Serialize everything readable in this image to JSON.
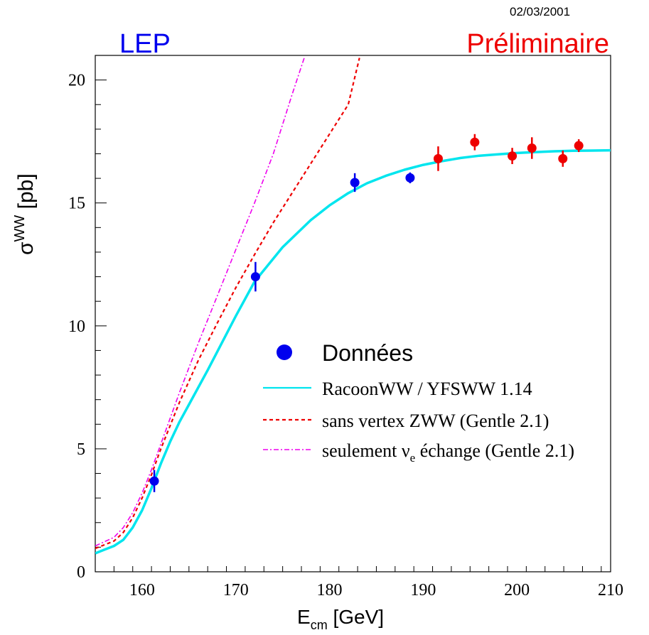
{
  "header": {
    "date": "02/03/2001",
    "left_title": "LEP",
    "right_title": "Préliminaire"
  },
  "colors": {
    "lep": "#0000ee",
    "preliminaire": "#ee0000",
    "data_blue": "#0000ee",
    "data_red": "#ee0000",
    "racoon": "#00e5ee",
    "zww": "#ee0000",
    "nue": "#ee00ee"
  },
  "chart_data": {
    "type": "line",
    "xlabel_main": "E",
    "xlabel_sub": "cm",
    "xlabel_unit": "[GeV]",
    "ylabel_main": "σ",
    "ylabel_sup": "WW",
    "ylabel_unit": "[pb]",
    "xlim": [
      155,
      210
    ],
    "ylim": [
      0,
      21
    ],
    "x_ticks": [
      160,
      170,
      180,
      190,
      200,
      210
    ],
    "y_ticks": [
      0,
      5,
      10,
      15,
      20
    ],
    "legend_position": "center-right",
    "points": [
      {
        "x": 161.3,
        "y": 3.69,
        "err": 0.45,
        "color": "blue"
      },
      {
        "x": 172.1,
        "y": 12.0,
        "err": 0.6,
        "color": "blue"
      },
      {
        "x": 182.7,
        "y": 15.83,
        "err": 0.38,
        "color": "blue"
      },
      {
        "x": 188.6,
        "y": 16.02,
        "err": 0.22,
        "color": "blue"
      },
      {
        "x": 191.6,
        "y": 16.8,
        "err": 0.5,
        "color": "red"
      },
      {
        "x": 195.5,
        "y": 17.47,
        "err": 0.33,
        "color": "red"
      },
      {
        "x": 199.5,
        "y": 16.91,
        "err": 0.33,
        "color": "red"
      },
      {
        "x": 201.6,
        "y": 17.23,
        "err": 0.44,
        "color": "red"
      },
      {
        "x": 204.9,
        "y": 16.8,
        "err": 0.33,
        "color": "red"
      },
      {
        "x": 206.6,
        "y": 17.33,
        "err": 0.26,
        "color": "red"
      }
    ],
    "series": [
      {
        "name": "RacoonWW / YFSWW 1.14",
        "style": "solid",
        "x": [
          155,
          156,
          157,
          158,
          159,
          160,
          161,
          162,
          163,
          164,
          165,
          167,
          170,
          172,
          175,
          178,
          180,
          182,
          184,
          186,
          188,
          190,
          192,
          194,
          196,
          198,
          200,
          202,
          204,
          206,
          208,
          210
        ],
        "y": [
          0.75,
          0.9,
          1.05,
          1.3,
          1.8,
          2.5,
          3.4,
          4.4,
          5.3,
          6.1,
          6.8,
          8.2,
          10.4,
          11.8,
          13.2,
          14.3,
          14.9,
          15.4,
          15.8,
          16.1,
          16.35,
          16.55,
          16.7,
          16.83,
          16.92,
          16.98,
          17.03,
          17.07,
          17.1,
          17.12,
          17.13,
          17.14
        ]
      },
      {
        "name": "sans vertex ZWW (Gentle 2.1)",
        "style": "dashed",
        "x": [
          155,
          157,
          158,
          159,
          160,
          161,
          162,
          164,
          166,
          168,
          170,
          172,
          174,
          176,
          178,
          180,
          182,
          183.2
        ],
        "y": [
          0.95,
          1.25,
          1.6,
          2.2,
          3.0,
          3.95,
          5.0,
          6.9,
          8.6,
          10.1,
          11.55,
          12.9,
          14.2,
          15.4,
          16.6,
          17.8,
          19.0,
          20.9
        ]
      },
      {
        "name": "seulement νe échange  (Gentle 2.1)",
        "style": "dashdot",
        "x": [
          155,
          157,
          158,
          159,
          160,
          161,
          162,
          164,
          166,
          168,
          170,
          172,
          174,
          176,
          177.3
        ],
        "y": [
          1.05,
          1.4,
          1.8,
          2.4,
          3.2,
          4.15,
          5.2,
          7.3,
          9.3,
          11.2,
          13.1,
          15.0,
          17.0,
          19.4,
          20.9
        ]
      }
    ],
    "legend": {
      "data_label": "Données",
      "line1": "RacoonWW / YFSWW 1.14",
      "line2": "sans vertex ZWW (Gentle 2.1)",
      "line3_pre": "seulement ν",
      "line3_sub": "e",
      "line3_post": " échange  (Gentle 2.1)"
    }
  }
}
